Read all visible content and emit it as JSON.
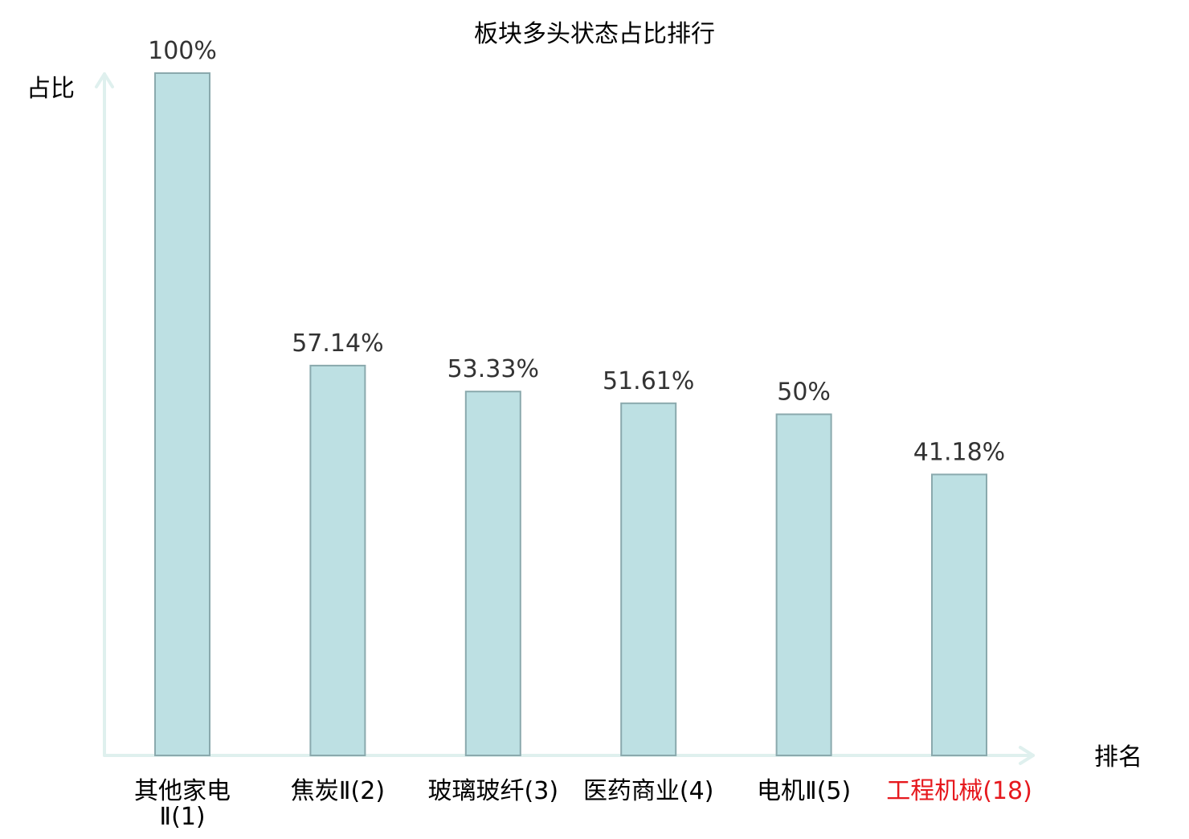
{
  "chart_data": {
    "type": "bar",
    "title": "板块多头状态占比排行",
    "ylabel": "占比",
    "xlabel": "排名",
    "ylim": [
      0,
      100
    ],
    "grid": false,
    "categories": [
      {
        "name": "其他家电Ⅱ",
        "rank": "(1)",
        "label_lines": [
          "其他家电",
          "Ⅱ(1)"
        ],
        "highlight": false
      },
      {
        "name": "焦炭Ⅱ",
        "rank": "(2)",
        "label_lines": [
          "焦炭Ⅱ(2)"
        ],
        "highlight": false
      },
      {
        "name": "玻璃玻纤",
        "rank": "(3)",
        "label_lines": [
          "玻璃玻纤(3)"
        ],
        "highlight": false
      },
      {
        "name": "医药商业",
        "rank": "(4)",
        "label_lines": [
          "医药商业(4)"
        ],
        "highlight": false
      },
      {
        "name": "电机Ⅱ",
        "rank": "(5)",
        "label_lines": [
          "电机Ⅱ(5)"
        ],
        "highlight": false
      },
      {
        "name": "工程机械",
        "rank": "(18)",
        "label_lines": [
          "工程机械(18)"
        ],
        "highlight": true
      }
    ],
    "values": [
      100,
      57.14,
      53.33,
      51.61,
      50,
      41.18
    ],
    "value_labels": [
      "100%",
      "57.14%",
      "53.33%",
      "51.61%",
      "50%",
      "41.18%"
    ],
    "colors": {
      "bar_fill": "#bde0e3",
      "bar_stroke": "#8aa9ad",
      "axis": "#dff0ee",
      "text": "#000000",
      "value_text": "#333333",
      "highlight_text": "#e6191e"
    }
  }
}
